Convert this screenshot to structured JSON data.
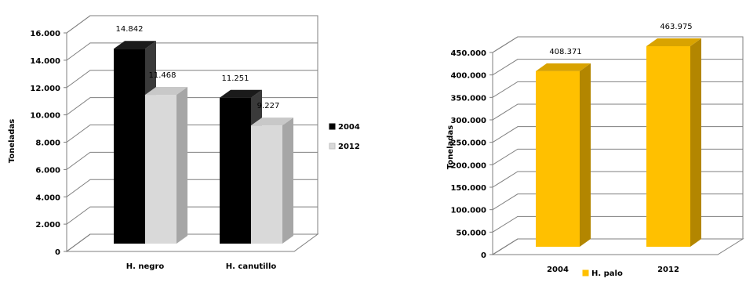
{
  "chart_data": [
    {
      "type": "bar",
      "categories": [
        "H. negro",
        "H. canutillo"
      ],
      "series": [
        {
          "name": "2004",
          "values": [
            14842,
            11251
          ],
          "labels": [
            "14.842",
            "11.251"
          ],
          "color": "#000000",
          "side": "#3a3a3a",
          "top": "#1a1a1a"
        },
        {
          "name": "2012",
          "values": [
            11468,
            9227
          ],
          "labels": [
            "11.468",
            "9.227"
          ],
          "color": "#d9d9d9",
          "side": "#a6a6a6",
          "top": "#c8c8c8"
        }
      ],
      "ylabel": "Toneladas",
      "ylim": [
        0,
        16000
      ],
      "yticks": [
        0,
        2000,
        4000,
        6000,
        8000,
        10000,
        12000,
        14000,
        16000
      ],
      "ytick_labels": [
        "0",
        "2.000",
        "4.000",
        "6.000",
        "8.000",
        "10.000",
        "12.000",
        "14.000",
        "16.000"
      ],
      "legend_position": "right",
      "grid": true
    },
    {
      "type": "bar",
      "categories": [
        "2004",
        "2012"
      ],
      "series": [
        {
          "name": "H. palo",
          "values": [
            408371,
            463975
          ],
          "labels": [
            "408.371",
            "463.975"
          ],
          "color": "#ffc000",
          "side": "#b38600",
          "top": "#d9a300"
        }
      ],
      "ylabel": "Toneladas",
      "ylim": [
        0,
        450000
      ],
      "yticks": [
        0,
        50000,
        100000,
        150000,
        200000,
        250000,
        300000,
        350000,
        400000,
        450000
      ],
      "ytick_labels": [
        "0",
        "50.000",
        "100.000",
        "150.000",
        "200.000",
        "250.000",
        "300.000",
        "350.000",
        "400.000",
        "450.000"
      ],
      "legend_position": "bottom",
      "grid": true
    }
  ]
}
